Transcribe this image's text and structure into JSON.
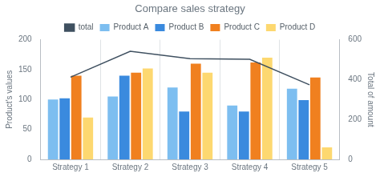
{
  "chart_data": {
    "type": "bar",
    "title": "Compare sales strategy",
    "categories": [
      "Strategy 1",
      "Strategy 2",
      "Strategy 3",
      "Strategy 4",
      "Strategy 5"
    ],
    "series": [
      {
        "name": "Product A",
        "color": "#7dbef0",
        "values": [
          100,
          105,
          120,
          90,
          118
        ]
      },
      {
        "name": "Product B",
        "color": "#3a8ade",
        "values": [
          102,
          140,
          80,
          80,
          99
        ]
      },
      {
        "name": "Product C",
        "color": "#f0801f",
        "values": [
          140,
          145,
          160,
          162,
          137
        ]
      },
      {
        "name": "Product D",
        "color": "#fdd870",
        "values": [
          70,
          152,
          145,
          170,
          20
        ]
      },
      {
        "name": "total",
        "color": "#3f5060",
        "type": "line",
        "axis": "y2",
        "values": [
          412,
          542,
          505,
          502,
          374
        ]
      }
    ],
    "y_label": "Product's values",
    "y2_label": "Total of amount",
    "ylim": [
      0,
      200
    ],
    "yticks": [
      0,
      50,
      100,
      150,
      200
    ],
    "y2lim": [
      0,
      600
    ],
    "y2ticks": [
      0,
      200,
      400,
      600
    ],
    "grid": true,
    "legend": "top"
  }
}
